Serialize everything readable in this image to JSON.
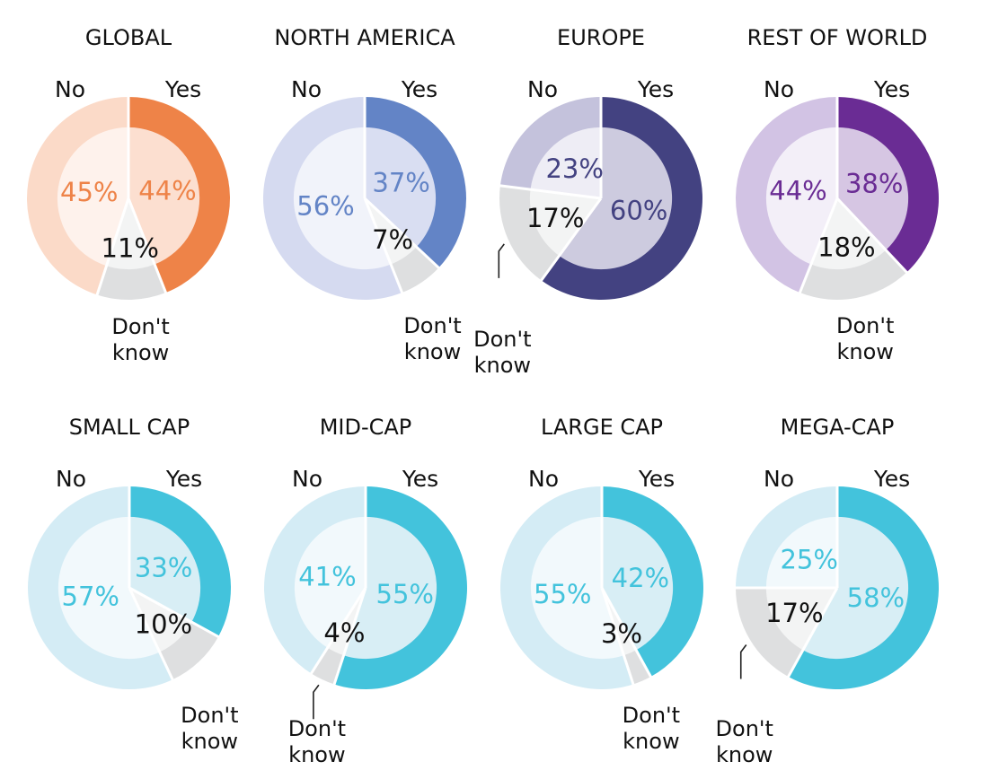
{
  "legend": {
    "yes": "Yes",
    "no": "No",
    "dont_know_line1": "Don't",
    "dont_know_line2": "know"
  },
  "colors": {
    "separator": "#ffffff",
    "dont_know_ring": "#dedfe0",
    "dont_know_fill": "#f3f4f4",
    "dont_know_label": "#111111",
    "leader_line": "#222222",
    "ring_band": "outer band 30% of radius"
  },
  "chart_data": [
    {
      "type": "pie",
      "title": "GLOBAL",
      "categories": [
        "Yes",
        "No",
        "Don't know"
      ],
      "values": [
        44,
        45,
        11
      ],
      "labels": [
        "44%",
        "45%",
        "11%"
      ],
      "colors": {
        "yes_ring": "#ee8348",
        "yes_fill": "#fcdfd0",
        "no_ring": "#fbdac8",
        "no_fill": "#fef2ec",
        "label": "#ee8348"
      }
    },
    {
      "type": "pie",
      "title": "NORTH AMERICA",
      "categories": [
        "Yes",
        "No",
        "Don't know"
      ],
      "values": [
        37,
        56,
        7
      ],
      "labels": [
        "37%",
        "56%",
        "7%"
      ],
      "colors": {
        "yes_ring": "#6384c6",
        "yes_fill": "#d9def2",
        "no_ring": "#d5daf0",
        "no_fill": "#f1f3fa",
        "label": "#6384c6"
      }
    },
    {
      "type": "pie",
      "title": "EUROPE",
      "categories": [
        "Yes",
        "No",
        "Don't know"
      ],
      "values": [
        60,
        23,
        17
      ],
      "labels": [
        "60%",
        "23%",
        "17%"
      ],
      "colors": {
        "yes_ring": "#434281",
        "yes_fill": "#cdcbdf",
        "no_ring": "#c4c2dc",
        "no_fill": "#eeedf5",
        "label": "#434281"
      }
    },
    {
      "type": "pie",
      "title": "REST OF WORLD",
      "categories": [
        "Yes",
        "No",
        "Don't know"
      ],
      "values": [
        38,
        44,
        18
      ],
      "labels": [
        "38%",
        "44%",
        "18%"
      ],
      "colors": {
        "yes_ring": "#6a2c94",
        "yes_fill": "#d6c6e3",
        "no_ring": "#d2c3e4",
        "no_fill": "#f3eff8",
        "label": "#6a2c94"
      }
    },
    {
      "type": "pie",
      "title": "SMALL CAP",
      "categories": [
        "Yes",
        "No",
        "Don't know"
      ],
      "values": [
        33,
        57,
        10
      ],
      "labels": [
        "33%",
        "57%",
        "10%"
      ],
      "colors": {
        "yes_ring": "#43c3dc",
        "yes_fill": "#d8eef5",
        "no_ring": "#d4ecf5",
        "no_fill": "#f2f9fc",
        "label": "#43c3dc"
      }
    },
    {
      "type": "pie",
      "title": "MID-CAP",
      "categories": [
        "Yes",
        "No",
        "Don't know"
      ],
      "values": [
        55,
        41,
        4
      ],
      "labels": [
        "55%",
        "41%",
        "4%"
      ],
      "colors": {
        "yes_ring": "#43c3dc",
        "yes_fill": "#d8eef5",
        "no_ring": "#d4ecf5",
        "no_fill": "#f2f9fc",
        "label": "#43c3dc"
      }
    },
    {
      "type": "pie",
      "title": "LARGE CAP",
      "categories": [
        "Yes",
        "No",
        "Don't know"
      ],
      "values": [
        42,
        55,
        3
      ],
      "labels": [
        "42%",
        "55%",
        "3%"
      ],
      "colors": {
        "yes_ring": "#43c3dc",
        "yes_fill": "#d8eef5",
        "no_ring": "#d4ecf5",
        "no_fill": "#f2f9fc",
        "label": "#43c3dc"
      }
    },
    {
      "type": "pie",
      "title": "MEGA-CAP",
      "categories": [
        "Yes",
        "No",
        "Don't know"
      ],
      "values": [
        58,
        25,
        17
      ],
      "labels": [
        "58%",
        "25%",
        "17%"
      ],
      "colors": {
        "yes_ring": "#43c3dc",
        "yes_fill": "#d8eef5",
        "no_ring": "#d4ecf5",
        "no_fill": "#f2f9fc",
        "label": "#43c3dc"
      }
    }
  ]
}
